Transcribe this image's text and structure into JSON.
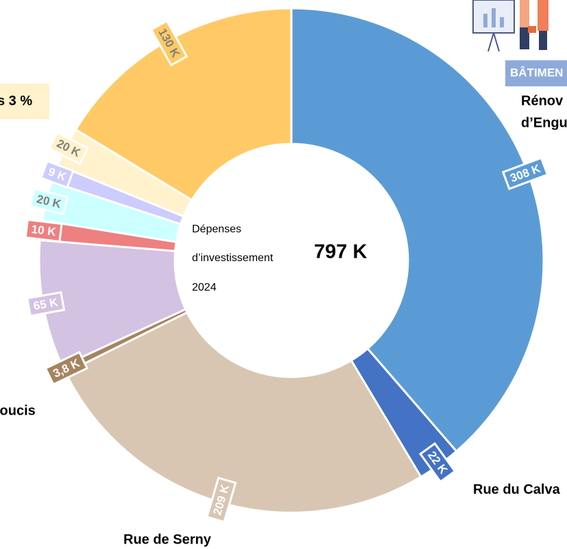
{
  "chart_data": {
    "type": "pie",
    "center_text": [
      "Dépenses",
      "d’investissement",
      "2024"
    ],
    "total_label": "797 K",
    "categories": [
      null,
      null,
      null,
      null,
      null,
      null,
      null,
      null,
      null,
      null
    ],
    "values": [
      308,
      22,
      209,
      3.8,
      65,
      10,
      20,
      9,
      20,
      130
    ],
    "value_labels": [
      "308 K",
      "22 K",
      "209 K",
      "3,8 K",
      "65 K",
      "10 K",
      "20 K",
      "9 K",
      "20 K",
      "130 K"
    ],
    "colors": [
      "#5b9bd5",
      "#4472c4",
      "#d8c6b2",
      "#a5855f",
      "#d3c2e2",
      "#ee8080",
      "#ccffff",
      "#ccccff",
      "#fff2cc",
      "#ffca66"
    ],
    "label_text_colors": [
      "#ffffff",
      "#ffffff",
      "#ffffff",
      "#ffffff",
      "#ffffff",
      "#ffffff",
      "#7f7f7f",
      "#ffffff",
      "#7f7f7f",
      "#7f7f7f"
    ],
    "annotations": [
      "Rénov",
      "d’Engu",
      "BÂTIMEN",
      "s 3 %",
      "loucis",
      "Rue du Calva",
      "Rue de Serny"
    ]
  }
}
